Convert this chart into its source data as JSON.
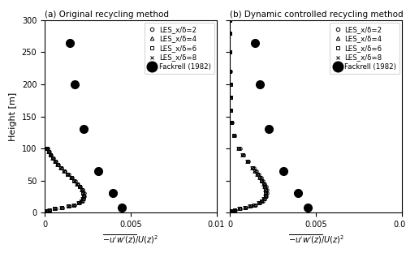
{
  "title_a": "(a) Original recycling method",
  "title_b": "(b) Dynamic controlled recycling method",
  "xlabel": "$-\\overline{u'w'(z)}/U(z)^2$",
  "ylabel": "Height [m]",
  "xlim": [
    0,
    0.01
  ],
  "ylim": [
    0,
    300
  ],
  "xticks": [
    0,
    0.005,
    0.01
  ],
  "yticks": [
    0,
    50,
    100,
    150,
    200,
    250,
    300
  ],
  "fackrell_x": [
    0.00145,
    0.00175,
    0.00225,
    0.0031,
    0.00395,
    0.0045
  ],
  "fackrell_y": [
    265,
    200,
    130,
    65,
    30,
    8
  ],
  "les_heights_a": [
    0,
    2,
    4,
    6,
    8,
    10,
    12,
    15,
    18,
    21,
    25,
    30,
    35,
    40,
    45,
    50,
    55,
    60,
    65,
    70,
    75,
    80,
    85,
    90,
    95,
    100
  ],
  "les_a_d2": [
    0.0,
    0.0001,
    0.0003,
    0.00065,
    0.00105,
    0.00145,
    0.00175,
    0.00205,
    0.0022,
    0.00228,
    0.00232,
    0.0023,
    0.00222,
    0.0021,
    0.00195,
    0.00178,
    0.0016,
    0.0014,
    0.0012,
    0.001,
    0.00082,
    0.00065,
    0.0005,
    0.00037,
    0.00026,
    0.00017
  ],
  "les_a_d4": [
    0.0,
    9e-05,
    0.00028,
    0.00062,
    0.00102,
    0.00141,
    0.00172,
    0.00202,
    0.00217,
    0.00225,
    0.00229,
    0.00227,
    0.00219,
    0.00207,
    0.00192,
    0.00175,
    0.00157,
    0.00137,
    0.00117,
    0.00097,
    0.00079,
    0.00063,
    0.00048,
    0.00035,
    0.00024,
    0.00015
  ],
  "les_a_d6": [
    0.0,
    8e-05,
    0.00026,
    0.00059,
    0.00099,
    0.00138,
    0.00169,
    0.00199,
    0.00214,
    0.00222,
    0.00226,
    0.00224,
    0.00216,
    0.00204,
    0.00189,
    0.00172,
    0.00154,
    0.00134,
    0.00114,
    0.00094,
    0.00076,
    0.0006,
    0.00046,
    0.00033,
    0.00022,
    0.00014
  ],
  "les_a_d8": [
    0.0,
    7e-05,
    0.00024,
    0.00056,
    0.00096,
    0.00135,
    0.00166,
    0.00196,
    0.00211,
    0.00219,
    0.00223,
    0.00221,
    0.00213,
    0.00201,
    0.00186,
    0.00169,
    0.00151,
    0.00131,
    0.00111,
    0.00091,
    0.00073,
    0.00057,
    0.00043,
    0.00031,
    0.0002,
    0.00012
  ],
  "les_heights_b": [
    0,
    2,
    4,
    6,
    8,
    10,
    12,
    15,
    18,
    21,
    25,
    30,
    35,
    40,
    45,
    50,
    55,
    60,
    65,
    70,
    80,
    90,
    100,
    120,
    140,
    160,
    180,
    200,
    220,
    250,
    280,
    300
  ],
  "les_b_d2": [
    0.0,
    0.0001,
    0.0003,
    0.0006,
    0.00092,
    0.00122,
    0.00148,
    0.00175,
    0.00192,
    0.00203,
    0.00212,
    0.00216,
    0.00215,
    0.0021,
    0.00202,
    0.00192,
    0.0018,
    0.00167,
    0.00153,
    0.00138,
    0.00108,
    0.0008,
    0.00057,
    0.00027,
    0.00011,
    4e-05,
    1.5e-05,
    5e-06,
    2e-06,
    5e-07,
    1e-07,
    0.0
  ],
  "les_b_d4": [
    0.0,
    9e-05,
    0.00028,
    0.00057,
    0.00089,
    0.00118,
    0.00144,
    0.00171,
    0.00188,
    0.00199,
    0.00208,
    0.00212,
    0.00211,
    0.00206,
    0.00198,
    0.00188,
    0.00176,
    0.00163,
    0.00149,
    0.00134,
    0.00104,
    0.00076,
    0.00053,
    0.00024,
    9e-05,
    3.3e-05,
    1.2e-05,
    4e-06,
    1.5e-06,
    4e-07,
    1e-07,
    0.0
  ],
  "les_b_d6": [
    0.0,
    8e-05,
    0.00026,
    0.00054,
    0.00086,
    0.00114,
    0.0014,
    0.00167,
    0.00184,
    0.00195,
    0.00204,
    0.00208,
    0.00207,
    0.00202,
    0.00194,
    0.00184,
    0.00172,
    0.00159,
    0.00145,
    0.0013,
    0.001,
    0.00072,
    0.0005,
    0.00022,
    8e-05,
    3e-05,
    1e-05,
    3.4e-06,
    1.2e-06,
    3e-07,
    1e-07,
    0.0
  ],
  "les_b_d8": [
    0.0,
    7e-05,
    0.00024,
    0.00051,
    0.00083,
    0.0011,
    0.00136,
    0.00163,
    0.0018,
    0.00191,
    0.002,
    0.00204,
    0.00203,
    0.00198,
    0.0019,
    0.0018,
    0.00168,
    0.00155,
    0.00141,
    0.00126,
    0.00096,
    0.00069,
    0.00047,
    0.0002,
    7.2e-05,
    2.6e-05,
    9e-06,
    3e-06,
    1e-06,
    3e-07,
    1e-07,
    0.0
  ],
  "color_les": "black",
  "markersize_les": 2.5,
  "markersize_fackrell": 7,
  "legend_labels": [
    "LES_x/δ=2",
    "LES_x/δ=4",
    "LES_x/δ=6",
    "LES_x/δ=8",
    "Fackrell (1982)"
  ]
}
